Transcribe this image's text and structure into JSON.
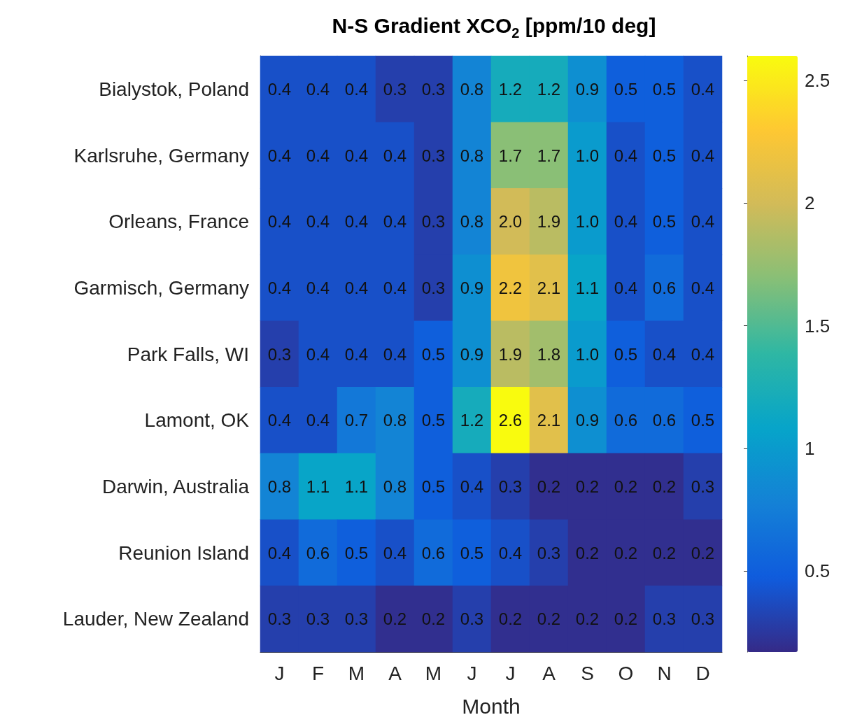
{
  "chart_data": {
    "type": "heatmap",
    "title": "N-S Gradient XCO$_{2}$ [ppm/10 deg]",
    "xlabel": "Month",
    "categories": [
      "J",
      "F",
      "M",
      "A",
      "M",
      "J",
      "J",
      "A",
      "S",
      "O",
      "N",
      "D"
    ],
    "y_categories": [
      "Bialystok, Poland",
      "Karlsruhe, Germany",
      "Orleans, France",
      "Garmisch, Germany",
      "Park Falls, WI",
      "Lamont, OK",
      "Darwin, Australia",
      "Reunion Island",
      "Lauder, New Zealand"
    ],
    "cells": [
      [
        0.4,
        0.4,
        0.4,
        0.3,
        0.3,
        0.8,
        1.2,
        1.2,
        0.9,
        0.5,
        0.5,
        0.4
      ],
      [
        0.4,
        0.4,
        0.4,
        0.4,
        0.3,
        0.8,
        1.7,
        1.7,
        1.0,
        0.4,
        0.5,
        0.4
      ],
      [
        0.4,
        0.4,
        0.4,
        0.4,
        0.3,
        0.8,
        2.0,
        1.9,
        1.0,
        0.4,
        0.5,
        0.4
      ],
      [
        0.4,
        0.4,
        0.4,
        0.4,
        0.3,
        0.9,
        2.2,
        2.1,
        1.1,
        0.4,
        0.6,
        0.4
      ],
      [
        0.3,
        0.4,
        0.4,
        0.4,
        0.5,
        0.9,
        1.9,
        1.8,
        1.0,
        0.5,
        0.4,
        0.4
      ],
      [
        0.4,
        0.4,
        0.7,
        0.8,
        0.5,
        1.2,
        2.6,
        2.1,
        0.9,
        0.6,
        0.6,
        0.5
      ],
      [
        0.8,
        1.1,
        1.1,
        0.8,
        0.5,
        0.4,
        0.3,
        0.2,
        0.2,
        0.2,
        0.2,
        0.3
      ],
      [
        0.4,
        0.6,
        0.5,
        0.4,
        0.6,
        0.5,
        0.4,
        0.3,
        0.2,
        0.2,
        0.2,
        0.2
      ],
      [
        0.3,
        0.3,
        0.3,
        0.2,
        0.2,
        0.3,
        0.2,
        0.2,
        0.2,
        0.2,
        0.3,
        0.3
      ]
    ],
    "cell_labels": [
      [
        "0.4",
        "0.4",
        "0.4",
        "0.3",
        "0.3",
        "0.8",
        "1.2",
        "1.2",
        "0.9",
        "0.5",
        "0.5",
        "0.4"
      ],
      [
        "0.4",
        "0.4",
        "0.4",
        "0.4",
        "0.3",
        "0.8",
        "1.7",
        "1.7",
        "1.0",
        "0.4",
        "0.5",
        "0.4"
      ],
      [
        "0.4",
        "0.4",
        "0.4",
        "0.4",
        "0.3",
        "0.8",
        "2.0",
        "1.9",
        "1.0",
        "0.4",
        "0.5",
        "0.4"
      ],
      [
        "0.4",
        "0.4",
        "0.4",
        "0.4",
        "0.3",
        "0.9",
        "2.2",
        "2.1",
        "1.1",
        "0.4",
        "0.6",
        "0.4"
      ],
      [
        "0.3",
        "0.4",
        "0.4",
        "0.4",
        "0.5",
        "0.9",
        "1.9",
        "1.8",
        "1.0",
        "0.5",
        "0.4",
        "0.4"
      ],
      [
        "0.4",
        "0.4",
        "0.7",
        "0.8",
        "0.5",
        "1.2",
        "2.6",
        "2.1",
        "0.9",
        "0.6",
        "0.6",
        "0.5"
      ],
      [
        "0.8",
        "1.1",
        "1.1",
        "0.8",
        "0.5",
        "0.4",
        "0.3",
        "0.2",
        "0.2",
        "0.2",
        "0.2",
        "0.3"
      ],
      [
        "0.4",
        "0.6",
        "0.5",
        "0.4",
        "0.6",
        "0.5",
        "0.4",
        "0.3",
        "0.2",
        "0.2",
        "0.2",
        "0.2"
      ],
      [
        "0.3",
        "0.3",
        "0.3",
        "0.2",
        "0.2",
        "0.3",
        "0.2",
        "0.2",
        "0.2",
        "0.2",
        "0.3",
        "0.3"
      ]
    ],
    "clim": [
      0.17,
      2.6
    ],
    "cticks": [
      0.5,
      1,
      1.5,
      2,
      2.5
    ]
  }
}
